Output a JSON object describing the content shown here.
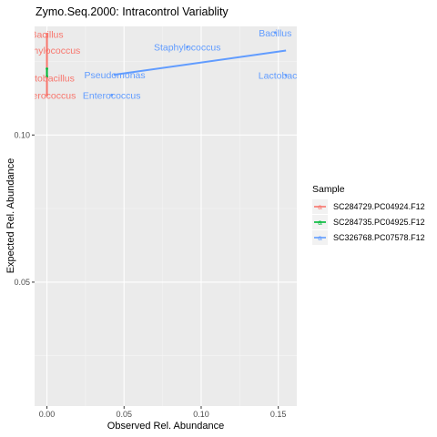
{
  "chart_data": {
    "type": "scatter",
    "title": "Zymo.Seq.2000: Intracontrol Variablity",
    "xlabel": "Observed Rel. Abundance",
    "ylabel": "Expected Rel. Abundance",
    "xlim": [
      -0.008,
      0.162
    ],
    "ylim": [
      0.0079,
      0.1369
    ],
    "x_ticks": [
      0.0,
      0.05,
      0.1,
      0.15
    ],
    "x_tick_labels": [
      "0.00",
      "0.05",
      "0.10",
      "0.15"
    ],
    "y_ticks": [
      0.05,
      0.1
    ],
    "y_tick_labels": [
      "0.05",
      "0.10"
    ],
    "grid": true,
    "legend_title": "Sample",
    "legend_position": "right",
    "series": [
      {
        "name": "SC284729.PC04924.F12",
        "color": "#F8766D",
        "points": [
          {
            "label": "Bacillus",
            "x": 0.0,
            "y": 0.1343
          },
          {
            "label": "Staphylococcus",
            "x": 0.0,
            "y": 0.1288
          },
          {
            "label": "Lactobacillus",
            "x": 0.0,
            "y": 0.1194
          },
          {
            "label": "Enterococcus",
            "x": 0.0,
            "y": 0.1136
          }
        ]
      },
      {
        "name": "SC284735.PC04925.F12",
        "color": "#00BA38",
        "points": [
          {
            "label": "",
            "x": 0.0,
            "y": 0.1225
          },
          {
            "label": "",
            "x": 0.0,
            "y": 0.1199
          }
        ]
      },
      {
        "name": "SC326768.PC07578.F12",
        "color": "#619CFF",
        "points": [
          {
            "label": "Bacillus",
            "x": 0.148,
            "y": 0.1348
          },
          {
            "label": "Staphylococcus",
            "x": 0.091,
            "y": 0.1299
          },
          {
            "label": "Pseudomonas",
            "x": 0.044,
            "y": 0.1205
          },
          {
            "label": "Lactobacillus",
            "x": 0.155,
            "y": 0.1203
          },
          {
            "label": "Enterococcus",
            "x": 0.042,
            "y": 0.1136
          }
        ],
        "trend": {
          "x": [
            0.044,
            0.155
          ],
          "y": [
            0.1205,
            0.1287
          ]
        }
      }
    ]
  }
}
